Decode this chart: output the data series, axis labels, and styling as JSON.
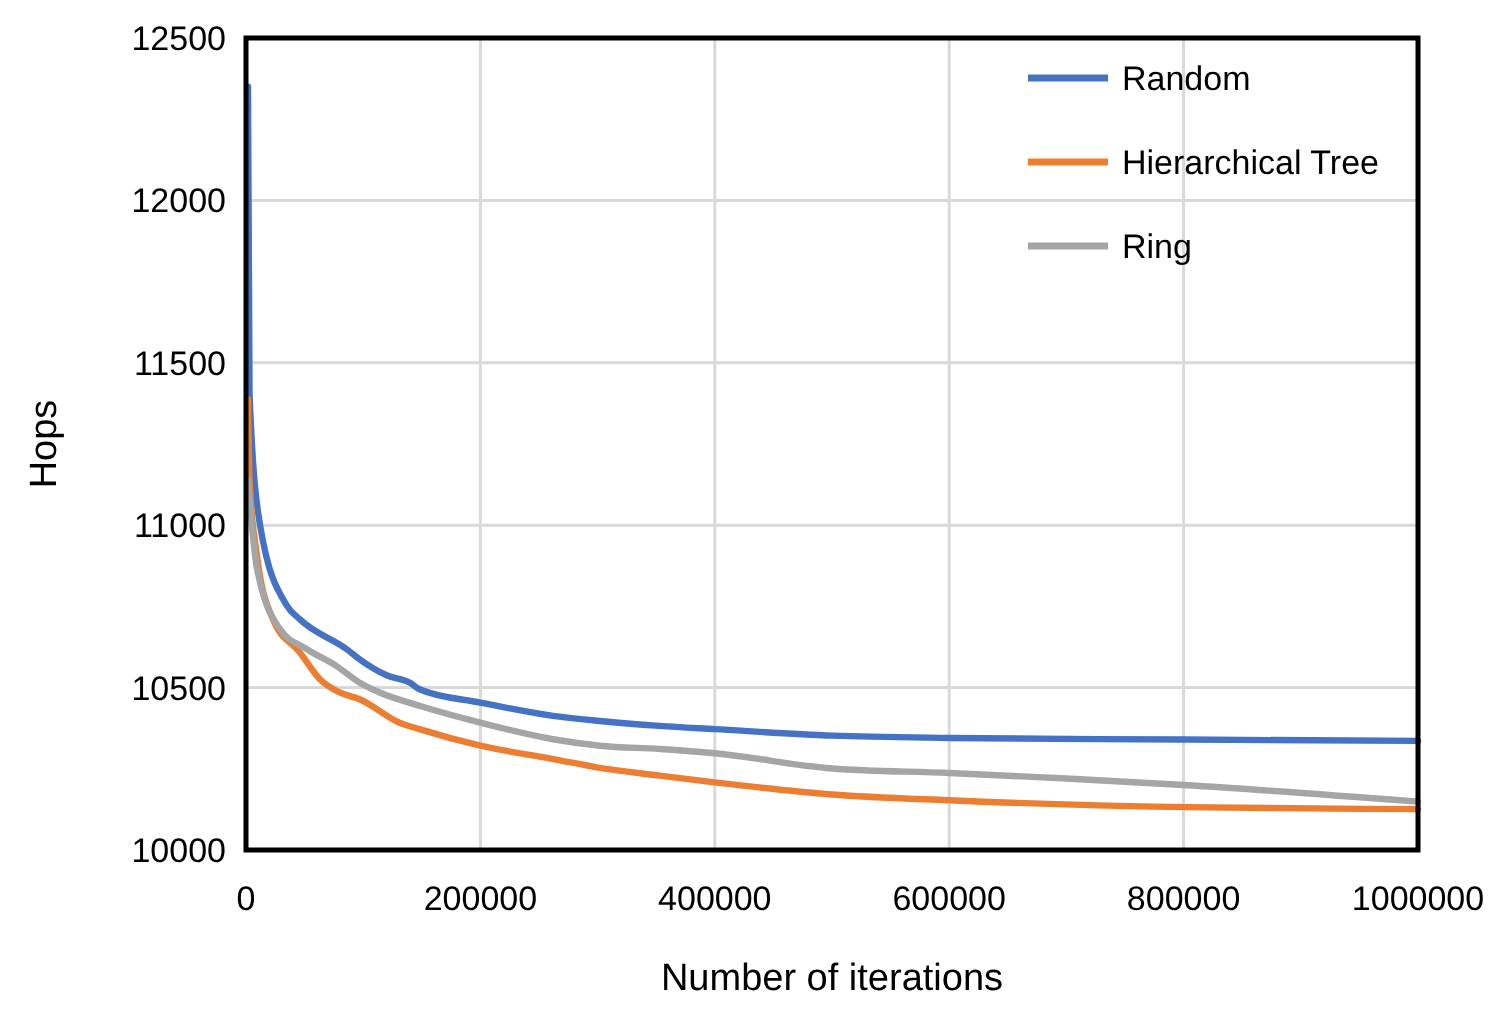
{
  "chart_data": {
    "type": "line",
    "xlabel": "Number of iterations",
    "ylabel": "Hops",
    "xlim": [
      0,
      1000000
    ],
    "ylim": [
      10000,
      12500
    ],
    "xticks": [
      0,
      200000,
      400000,
      600000,
      800000,
      1000000
    ],
    "yticks": [
      10000,
      10500,
      11000,
      11500,
      12000,
      12500
    ],
    "grid": true,
    "legend": "top right",
    "line_style": "solid",
    "series": [
      {
        "name": "Random",
        "color": "#4472c4",
        "x": [
          1700,
          3000,
          12000,
          34700,
          46000,
          86000,
          97000,
          120000,
          140000,
          148000,
          200000,
          262000,
          302000,
          353000,
          400000,
          500000,
          600000,
          800000,
          1000000
        ],
        "values": [
          12350,
          11407,
          11000,
          10753,
          10710,
          10618,
          10587,
          10538,
          10515,
          10495,
          10454,
          10413,
          10397,
          10382,
          10372,
          10352,
          10345,
          10340,
          10336
        ]
      },
      {
        "name": "Hierarchical Tree",
        "color": "#ed7d31",
        "x": [
          1700,
          3000,
          9000,
          23000,
          46000,
          63000,
          80000,
          97000,
          131000,
          148000,
          200000,
          262000,
          302000,
          353000,
          400000,
          500000,
          600000,
          800000,
          1000000
        ],
        "values": [
          11387,
          11141,
          10915,
          10710,
          10608,
          10526,
          10485,
          10464,
          10392,
          10372,
          10321,
          10280,
          10253,
          10229,
          10208,
          10171,
          10153,
          10132,
          10126
        ]
      },
      {
        "name": "Ring",
        "color": "#a5a5a5",
        "x": [
          1700,
          9000,
          29000,
          52000,
          77000,
          97000,
          114000,
          148000,
          200000,
          262000,
          302000,
          353000,
          400000,
          500000,
          600000,
          700000,
          800000,
          1000000
        ],
        "values": [
          11141,
          10875,
          10680,
          10618,
          10567,
          10515,
          10485,
          10444,
          10392,
          10341,
          10321,
          10311,
          10298,
          10251,
          10237,
          10220,
          10200,
          10149
        ]
      }
    ]
  }
}
